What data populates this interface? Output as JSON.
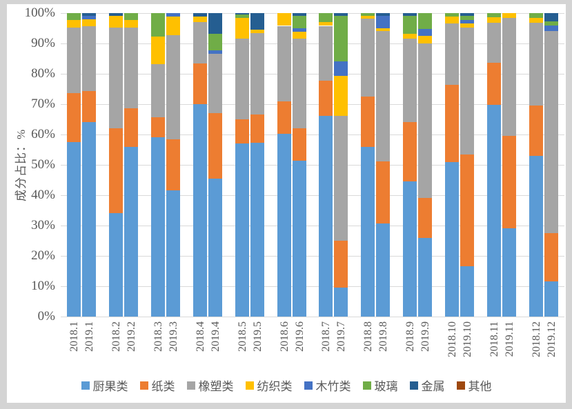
{
  "frame": {
    "background": "#d4d4d4",
    "canvas_background": "#ffffff"
  },
  "colors": {
    "text": "#595959",
    "gridline": "#d9d9d9"
  },
  "chart_data": {
    "type": "bar",
    "subtype": "stacked-100",
    "title": "",
    "xlabel": "",
    "ylabel": "成分占比：%",
    "ylim": [
      0,
      100
    ],
    "ytick_step": 10,
    "ytick_suffix": "%",
    "grid": true,
    "legend_position": "bottom",
    "categories": [
      "2018.1",
      "2019.1",
      "2018.2",
      "2019.2",
      "2018.3",
      "2019.3",
      "2018.4",
      "2019.4",
      "2018.5",
      "2019.5",
      "2018.6",
      "2019.6",
      "2018.7",
      "2019.7",
      "2018.8",
      "2019.8",
      "2018.9",
      "2019.9",
      "2018.10",
      "2019.10",
      "2018.11",
      "2019.11",
      "2018.12",
      "2019.12"
    ],
    "series": [
      {
        "name": "厨果类",
        "slug": "kitchen-fruit",
        "color": "#5B9BD5",
        "values": [
          57.5,
          64,
          34,
          56,
          59,
          41.5,
          69.9,
          45.4,
          57,
          57.2,
          60.2,
          51.4,
          66.1,
          9.5,
          55.9,
          30.7,
          44.5,
          26,
          50.9,
          16.5,
          69.8,
          29,
          53,
          11.5
        ]
      },
      {
        "name": "纸类",
        "slug": "paper",
        "color": "#ED7D31",
        "values": [
          16.2,
          10.4,
          28.1,
          12.7,
          6.7,
          17,
          13.6,
          21.7,
          8,
          9.3,
          10.8,
          10.7,
          11.6,
          15.4,
          16.5,
          20.5,
          19.7,
          13,
          25.5,
          36.9,
          13.9,
          30.6,
          16.5,
          16
        ]
      },
      {
        "name": "橡塑类",
        "slug": "rubber-plastic",
        "color": "#A5A5A5",
        "values": [
          21.5,
          21.2,
          33.1,
          26.6,
          17.4,
          34.3,
          13.5,
          19.5,
          26.5,
          26.9,
          24.8,
          29.5,
          18.1,
          41.2,
          25.8,
          42.8,
          27.4,
          51.1,
          20.3,
          41.9,
          13.1,
          38.9,
          27.4,
          66.6
        ]
      },
      {
        "name": "纺织类",
        "slug": "textile",
        "color": "#FFC000",
        "values": [
          2.5,
          2.3,
          3.9,
          2.4,
          9.2,
          6,
          1.8,
          0,
          7,
          1.2,
          4.2,
          2.3,
          1.2,
          13.2,
          0.8,
          1,
          1.5,
          2.5,
          2.1,
          1.2,
          1.8,
          1.5,
          1.6,
          0
        ]
      },
      {
        "name": "木竹类",
        "slug": "wood-bamboo",
        "color": "#4472C4",
        "values": [
          0,
          1.3,
          0,
          0,
          0,
          1.2,
          0,
          1.2,
          0,
          0,
          0,
          1.2,
          0,
          4.7,
          0,
          4,
          0,
          2.2,
          0,
          1.2,
          0,
          0,
          0,
          1.8
        ]
      },
      {
        "name": "玻璃",
        "slug": "glass",
        "color": "#70AD47",
        "values": [
          2.3,
          0,
          0,
          2.3,
          7.7,
          0,
          0,
          5.3,
          1,
          0,
          0,
          4.1,
          3,
          15,
          1,
          0,
          6,
          5.2,
          1.2,
          1.3,
          1.4,
          0,
          1.5,
          1.3
        ]
      },
      {
        "name": "金属",
        "slug": "metal",
        "color": "#255E91",
        "values": [
          0,
          0.8,
          0.9,
          0,
          0,
          0,
          1.2,
          6.9,
          0.5,
          5.4,
          0,
          0.8,
          0,
          1,
          0,
          1,
          0.9,
          0,
          0,
          1,
          0,
          0,
          0,
          2.8
        ]
      },
      {
        "name": "其他",
        "slug": "other",
        "color": "#9E480E",
        "values": [
          0,
          0,
          0,
          0,
          0,
          0,
          0,
          0,
          0,
          0,
          0,
          0,
          0,
          0,
          0,
          0,
          0,
          0,
          0,
          0,
          0,
          0,
          0,
          0
        ]
      }
    ]
  }
}
